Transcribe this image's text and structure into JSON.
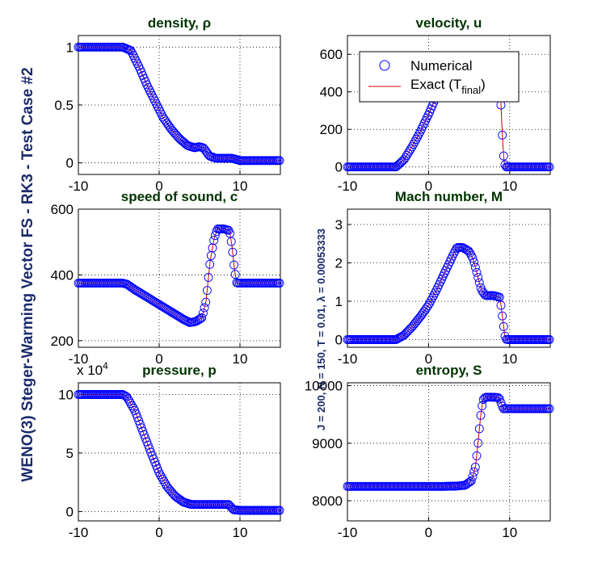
{
  "figure": {
    "suptitle": "WENO(3) Steger-Warming Vector FS - RK3 - Test Case #2",
    "params_text": "J = 200,  N = 150,  T = 0.01,  λ = 0.00053333",
    "legend": {
      "numerical": "Numerical",
      "exact": "Exact (T",
      "exact_sub": "final",
      "exact_close": ")"
    },
    "colors": {
      "numerical": "#0000ff",
      "exact": "#cc0000"
    }
  },
  "chart_data": [
    {
      "type": "line",
      "title": "density, ρ",
      "xlim": [
        -10,
        15
      ],
      "ylim": [
        -0.1,
        1.1
      ],
      "xticks": [
        -10,
        0,
        10
      ],
      "yticks": [
        0,
        0.5,
        1
      ],
      "yticklabels": [
        "0",
        "0.5",
        "1"
      ],
      "grid": true,
      "exponent_label": "",
      "x": [
        -10,
        -4.5,
        -3.5,
        -2.5,
        -1.5,
        -0.5,
        0.5,
        1.5,
        2.5,
        3.5,
        4.4,
        4.9,
        5.5,
        6.2,
        7,
        8,
        9,
        10,
        11,
        12,
        13,
        14,
        15
      ],
      "y": [
        1,
        1,
        0.97,
        0.83,
        0.67,
        0.53,
        0.39,
        0.29,
        0.21,
        0.15,
        0.13,
        0.14,
        0.13,
        0.06,
        0.04,
        0.04,
        0.04,
        0.02,
        0.02,
        0.02,
        0.02,
        0.02,
        0.02
      ]
    },
    {
      "type": "line",
      "title": "velocity, u",
      "xlim": [
        -10,
        15
      ],
      "ylim": [
        -40,
        700
      ],
      "xticks": [
        -10,
        0,
        10
      ],
      "yticks": [
        0,
        200,
        400,
        600
      ],
      "yticklabels": [
        "0",
        "200",
        "400",
        "600"
      ],
      "grid": true,
      "exponent_label": "",
      "x": [
        -10,
        -4,
        -3,
        -2,
        -1,
        0,
        1,
        2,
        3,
        4,
        5,
        6,
        7,
        8,
        8.8,
        9.1,
        9.3,
        9.5,
        10,
        11,
        12,
        13,
        14,
        15
      ],
      "y": [
        0,
        0,
        40,
        110,
        190,
        280,
        380,
        420,
        430,
        440,
        445,
        448,
        450,
        450,
        450,
        160,
        30,
        0,
        0,
        0,
        0,
        0,
        0,
        0
      ],
      "legend": true
    },
    {
      "type": "line",
      "title": "speed of sound, c",
      "xlim": [
        -10,
        15
      ],
      "ylim": [
        180,
        600
      ],
      "xticks": [
        -10,
        0,
        10
      ],
      "yticks": [
        200,
        400,
        600
      ],
      "yticklabels": [
        "200",
        "400",
        "600"
      ],
      "grid": true,
      "exponent_label": "",
      "x": [
        -10,
        -4.5,
        -4,
        -3,
        -2,
        -1,
        0,
        1,
        2,
        3,
        3.8,
        4.5,
        5.3,
        5.8,
        6.3,
        6.8,
        7.2,
        8,
        8.7,
        9,
        9.3,
        9.6,
        10,
        11,
        12,
        13,
        14,
        15
      ],
      "y": [
        375,
        375,
        372,
        355,
        340,
        325,
        310,
        295,
        280,
        265,
        255,
        258,
        270,
        320,
        440,
        510,
        540,
        540,
        535,
        490,
        420,
        375,
        375,
        375,
        375,
        375,
        375,
        375
      ]
    },
    {
      "type": "line",
      "title": "Mach number, M",
      "xlim": [
        -10,
        15
      ],
      "ylim": [
        -0.2,
        3.4
      ],
      "xticks": [
        -10,
        0,
        10
      ],
      "yticks": [
        0,
        1,
        2,
        3
      ],
      "yticklabels": [
        "0",
        "1",
        "2",
        "3"
      ],
      "grid": true,
      "exponent_label": "",
      "x": [
        -10,
        -4,
        -3,
        -2,
        -1,
        0,
        1,
        2,
        3,
        3.5,
        4.2,
        5,
        5.5,
        6,
        6.5,
        7,
        8,
        8.8,
        9.1,
        9.4,
        9.6,
        10,
        11,
        12,
        13,
        14,
        15
      ],
      "y": [
        0,
        0,
        0.12,
        0.34,
        0.6,
        0.9,
        1.3,
        1.75,
        2.2,
        2.4,
        2.4,
        2.3,
        2.1,
        1.7,
        1.3,
        1.15,
        1.15,
        1.1,
        0.6,
        0.1,
        0,
        0,
        0,
        0,
        0,
        0,
        0
      ]
    },
    {
      "type": "line",
      "title": "pressure, p",
      "xlim": [
        -10,
        15
      ],
      "ylim": [
        -0.8,
        11
      ],
      "xticks": [
        -10,
        0,
        10
      ],
      "yticks": [
        0,
        5,
        10
      ],
      "yticklabels": [
        "0",
        "5",
        "10"
      ],
      "grid": true,
      "exponent_label": "x 10^4",
      "x": [
        -10,
        -4.5,
        -4,
        -3,
        -2,
        -1,
        0,
        1,
        2,
        3,
        4,
        5,
        6,
        7,
        8,
        8.6,
        9.2,
        10,
        11,
        12,
        13,
        14,
        15
      ],
      "y": [
        10,
        10,
        9.8,
        8.6,
        6.8,
        5,
        3.3,
        2.1,
        1.3,
        0.8,
        0.6,
        0.6,
        0.6,
        0.6,
        0.6,
        0.6,
        0.15,
        0.1,
        0.1,
        0.1,
        0.1,
        0.1,
        0.1
      ]
    },
    {
      "type": "line",
      "title": "entropy, S",
      "xlim": [
        -10,
        15
      ],
      "ylim": [
        7650,
        10050
      ],
      "xticks": [
        -10,
        0,
        10
      ],
      "yticks": [
        8000,
        9000,
        10000
      ],
      "yticklabels": [
        "8000",
        "9000",
        "10000"
      ],
      "grid": true,
      "exponent_label": "",
      "x": [
        -10,
        -8,
        -6,
        -4,
        -2,
        0,
        2,
        3.5,
        4.5,
        5.3,
        5.8,
        6.1,
        6.4,
        6.7,
        7,
        7.5,
        8,
        8.7,
        9.2,
        10,
        11,
        12,
        13,
        14,
        15
      ],
      "y": [
        8250,
        8250,
        8250,
        8250,
        8250,
        8250,
        8250,
        8255,
        8270,
        8350,
        8600,
        9000,
        9450,
        9750,
        9800,
        9800,
        9800,
        9790,
        9600,
        9600,
        9600,
        9600,
        9600,
        9600,
        9600
      ]
    }
  ]
}
